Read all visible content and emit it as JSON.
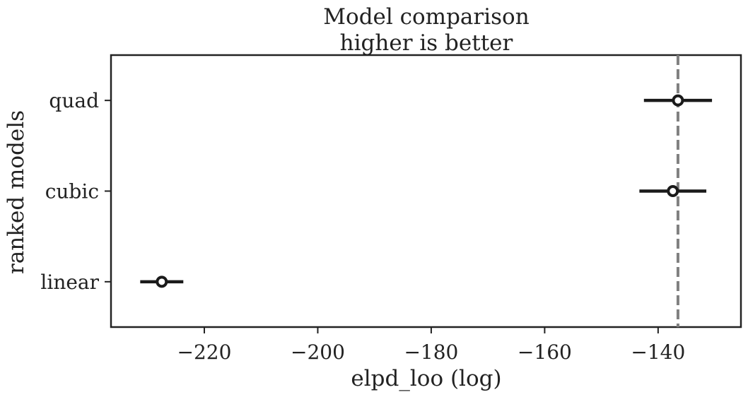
{
  "chart_data": {
    "type": "errorbar",
    "title": "Model comparison",
    "subtitle": "higher is better",
    "xlabel": "elpd_loo (log)",
    "ylabel": "ranked models",
    "categories": [
      "quad",
      "cubic",
      "linear"
    ],
    "values": [
      -136.5,
      -137.4,
      -227.5
    ],
    "errors": [
      6.0,
      5.9,
      3.8
    ],
    "color": "#1a1a1a",
    "ref_line": -136.5,
    "ref_color": "#808080",
    "xlim": [
      -236.45,
      -125.4
    ],
    "xticks": [
      {
        "value": -220,
        "label": "−220"
      },
      {
        "value": -200,
        "label": "−200"
      },
      {
        "value": -180,
        "label": "−180"
      },
      {
        "value": -160,
        "label": "−160"
      },
      {
        "value": -140,
        "label": "−140"
      }
    ]
  }
}
